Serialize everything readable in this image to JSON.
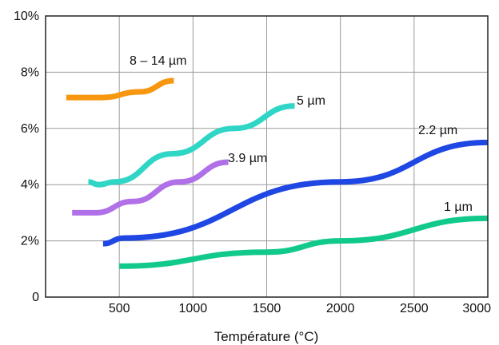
{
  "chart_data": {
    "type": "line",
    "xlabel": "Température (°C)",
    "ylabel": "",
    "xlim": [
      0,
      3000
    ],
    "ylim": [
      0,
      10
    ],
    "x_ticks": [
      {
        "value": 500,
        "label": "500"
      },
      {
        "value": 1000,
        "label": "1000"
      },
      {
        "value": 1500,
        "label": "1500"
      },
      {
        "value": 2000,
        "label": "2000"
      },
      {
        "value": 2500,
        "label": "2500"
      },
      {
        "value": 3000,
        "label": "3000"
      }
    ],
    "y_ticks": [
      {
        "value": 0,
        "label": "0"
      },
      {
        "value": 2,
        "label": "2%"
      },
      {
        "value": 4,
        "label": "4%"
      },
      {
        "value": 6,
        "label": "6%"
      },
      {
        "value": 8,
        "label": "8%"
      },
      {
        "value": 10,
        "label": "10%"
      }
    ],
    "grid": true,
    "series": [
      {
        "name": "8 – 14 µm",
        "color": "#f7960f",
        "points": [
          [
            140,
            7.1
          ],
          [
            380,
            7.1
          ],
          [
            640,
            7.3
          ],
          [
            870,
            7.7
          ]
        ]
      },
      {
        "name": "5 µm",
        "color": "#2fd6c6",
        "points": [
          [
            290,
            4.1
          ],
          [
            360,
            4.0
          ],
          [
            470,
            4.1
          ],
          [
            860,
            5.1
          ],
          [
            1280,
            6.0
          ],
          [
            1690,
            6.8
          ]
        ]
      },
      {
        "name": "3.9 µm",
        "color": "#b070e8",
        "points": [
          [
            180,
            3.0
          ],
          [
            340,
            3.0
          ],
          [
            590,
            3.4
          ],
          [
            910,
            4.1
          ],
          [
            1240,
            4.8
          ]
        ]
      },
      {
        "name": "2.2 µm",
        "color": "#1f47e3",
        "points": [
          [
            390,
            1.9
          ],
          [
            530,
            2.1
          ],
          [
            2000,
            4.1
          ],
          [
            3000,
            5.5
          ]
        ]
      },
      {
        "name": "1 µm",
        "color": "#10c98a",
        "points": [
          [
            500,
            1.1
          ],
          [
            1500,
            1.6
          ],
          [
            2000,
            2.0
          ],
          [
            3000,
            2.8
          ]
        ]
      }
    ]
  }
}
